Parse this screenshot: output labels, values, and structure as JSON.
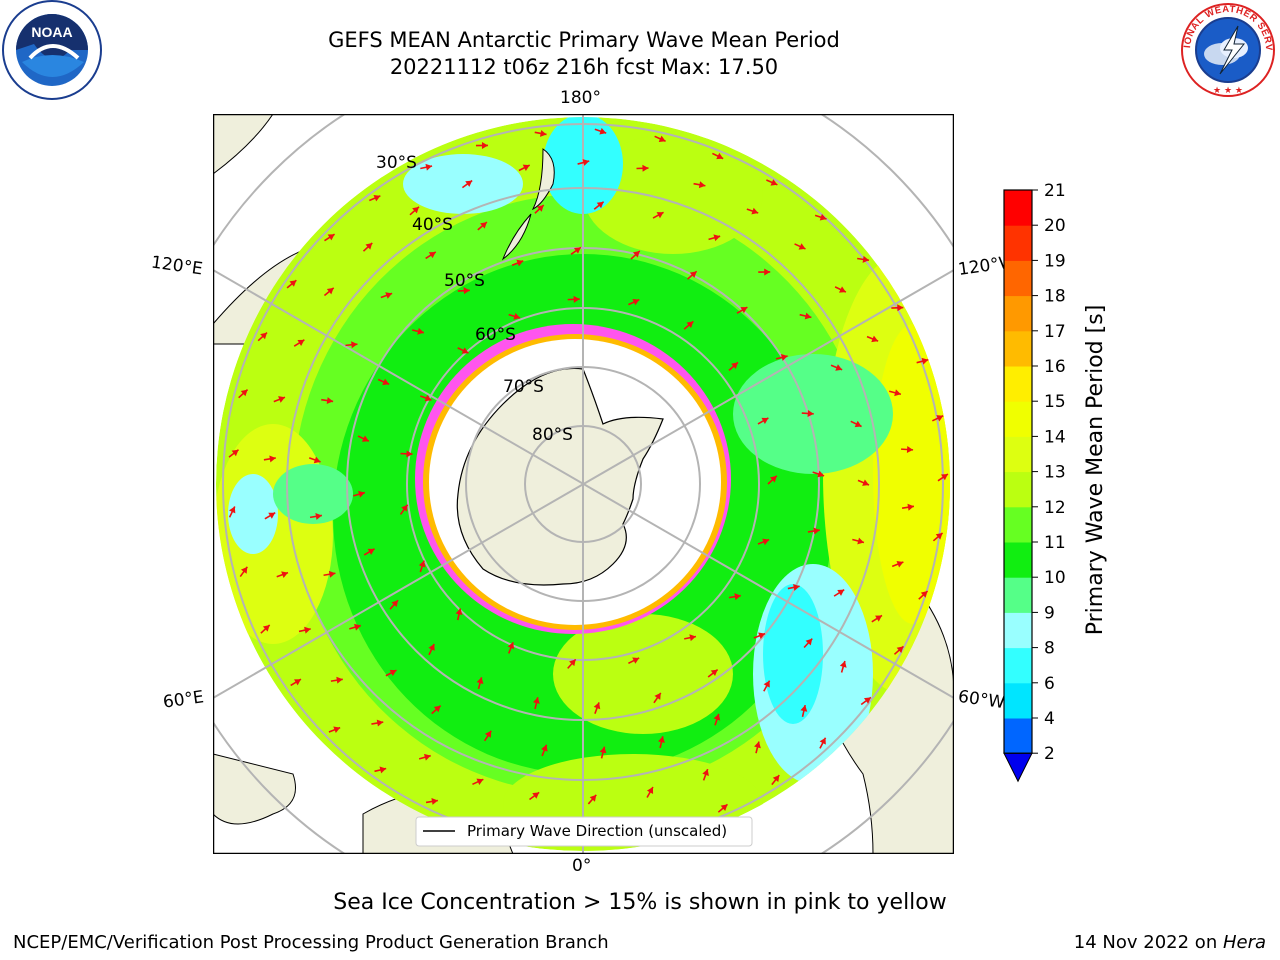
{
  "header": {
    "title_line1": "GEFS MEAN Antarctic Primary Wave Mean Period",
    "title_line2": "20221112 t06z 216h fcst   Max: 17.50"
  },
  "map": {
    "type": "polar-stereographic-south",
    "longitude_labels": {
      "top": "180°",
      "bottom": "0°",
      "upper_left": "120°E",
      "upper_right": "120°W",
      "lower_left": "60°E",
      "lower_right": "60°W"
    },
    "latitude_labels": [
      "30°S",
      "40°S",
      "50°S",
      "60°S",
      "70°S",
      "80°S"
    ],
    "legend_label": "Primary Wave Direction (unscaled)",
    "colors": {
      "land": "#efefdc",
      "ice_free_area": "#ffffff",
      "arrow": "#ee1111",
      "grid": "#b4b4b4",
      "sea_ice": "#ff55ee"
    }
  },
  "colorbar": {
    "label": "Primary Wave Mean Period [s]",
    "ticks": [
      "2",
      "4",
      "6",
      "8",
      "9",
      "10",
      "11",
      "12",
      "13",
      "14",
      "15",
      "16",
      "17",
      "18",
      "19",
      "20",
      "21"
    ],
    "colors": [
      "#0066ff",
      "#00e5ff",
      "#33ffff",
      "#99ffff",
      "#55ff88",
      "#11ee11",
      "#66ff22",
      "#bbff11",
      "#ddff11",
      "#f0ff00",
      "#ffee00",
      "#ffbb00",
      "#ff9900",
      "#ff6600",
      "#ff3300",
      "#ff0000"
    ],
    "underflow_color": "#0000ee"
  },
  "logos": {
    "left": "NOAA",
    "right": "NATIONAL WEATHER SERVICE"
  },
  "note": "Sea Ice Concentration > 15% is shown in pink to yellow",
  "footer": {
    "left": "NCEP/EMC/Verification Post Processing Product Generation Branch",
    "right_prefix": "14 Nov 2022 on ",
    "right_host": "Hera"
  }
}
